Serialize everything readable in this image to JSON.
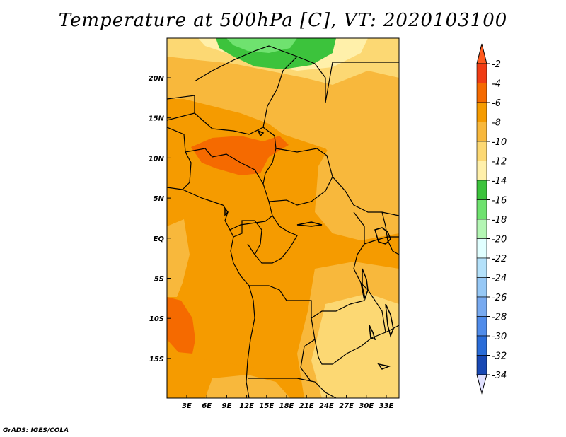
{
  "title": "Temperature at 500hPa [C], VT: 2020103100",
  "credit": "GrADS: IGES/COLA",
  "map": {
    "region": "Central Africa",
    "lon_ticks": [
      "3E",
      "6E",
      "9E",
      "12E",
      "15E",
      "18E",
      "21E",
      "24E",
      "27E",
      "30E",
      "33E"
    ],
    "lat_ticks": [
      "20N",
      "15N",
      "10N",
      "5N",
      "EQ",
      "5S",
      "10S",
      "15S"
    ]
  },
  "colorbar": {
    "labels": [
      "-2",
      "-4",
      "-6",
      "-8",
      "-10",
      "-12",
      "-14",
      "-16",
      "-18",
      "-20",
      "-22",
      "-24",
      "-26",
      "-28",
      "-30",
      "-32",
      "-34"
    ],
    "colors": [
      "#f03c14",
      "#f56a00",
      "#f59b00",
      "#f8b83c",
      "#fcd873",
      "#fff0aa",
      "#3cc33c",
      "#6fe26f",
      "#b4f6b4",
      "#e1ffff",
      "#b4e1fa",
      "#96c8f6",
      "#78aaf0",
      "#508cea",
      "#2a6cd8",
      "#1848b4",
      "#0a0a78"
    ],
    "top_color": "#ff5a1e",
    "bottom_color": "#e0e0ff"
  },
  "field_colors": {
    "ocean": "#f59b00",
    "dark": "#f56a00",
    "light": "#f8b83c",
    "pale": "#fcd873",
    "paler": "#fff0aa",
    "green_dark": "#3cc33c",
    "green_light": "#6fe26f"
  }
}
